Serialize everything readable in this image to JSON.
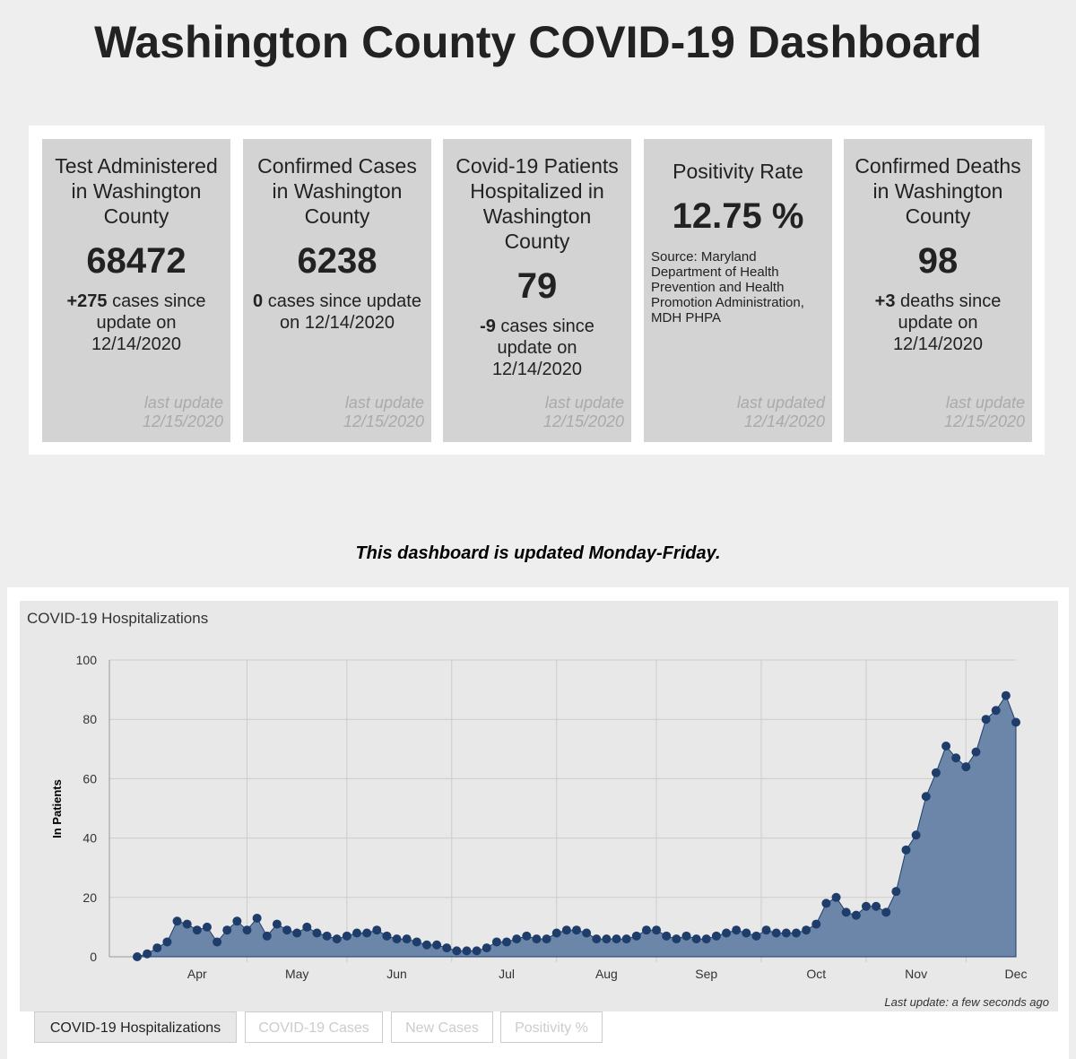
{
  "header": {
    "title": "Washington County COVID-19 Dashboard"
  },
  "cards": [
    {
      "title": "Test Administered in Washington County",
      "value": "68472",
      "change": "+275",
      "change_text": "cases since update on 12/14/2020",
      "updated_label": "last update",
      "updated": "12/15/2020"
    },
    {
      "title": "Confirmed Cases in Washington County",
      "value": "6238",
      "change": "0",
      "change_text": "cases since update on 12/14/2020",
      "updated_label": "last update",
      "updated": "12/15/2020"
    },
    {
      "title": "Covid-19 Patients Hospitalized in Washington County",
      "value": "79",
      "change": "-9",
      "change_text": "cases since update on 12/14/2020",
      "updated_label": "last update",
      "updated": "12/15/2020"
    },
    {
      "title": "Positivity Rate",
      "value": "12.75 %",
      "source": "Source: Maryland Department of Health Prevention and Health Promotion Administration, MDH PHPA",
      "updated_label": "last updated",
      "updated": "12/14/2020"
    },
    {
      "title": "Confirmed Deaths in Washington County",
      "value": "98",
      "change": "+3",
      "change_text": "deaths since update on 12/14/2020",
      "updated_label": "last update",
      "updated": "12/15/2020"
    }
  ],
  "note": "This dashboard is updated Monday-Friday.",
  "chart_data": {
    "type": "area",
    "title": "COVID-19 Hospitalizations",
    "y_label": "In Patients",
    "footnote": "Last update: a few seconds ago",
    "categories": [
      null,
      null,
      null,
      null,
      null,
      null,
      "Apr",
      null,
      null,
      null,
      null,
      null,
      null,
      null,
      null,
      null,
      "May",
      null,
      null,
      null,
      null,
      null,
      null,
      null,
      null,
      null,
      "Jun",
      null,
      null,
      null,
      null,
      null,
      null,
      null,
      null,
      null,
      null,
      "Jul",
      null,
      null,
      null,
      null,
      null,
      null,
      null,
      null,
      null,
      "Aug",
      null,
      null,
      null,
      null,
      null,
      null,
      null,
      null,
      null,
      "Sep",
      null,
      null,
      null,
      null,
      null,
      null,
      null,
      null,
      null,
      null,
      "Oct",
      null,
      null,
      null,
      null,
      null,
      null,
      null,
      null,
      null,
      "Nov",
      null,
      null,
      null,
      null,
      null,
      null,
      null,
      null,
      null,
      "Dec"
    ],
    "values": [
      0,
      1,
      3,
      5,
      12,
      11,
      9,
      10,
      5,
      9,
      12,
      9,
      13,
      7,
      11,
      9,
      8,
      10,
      8,
      7,
      6,
      7,
      8,
      8,
      9,
      7,
      6,
      6,
      5,
      4,
      4,
      3,
      2,
      2,
      2,
      3,
      5,
      5,
      6,
      7,
      6,
      6,
      8,
      9,
      9,
      8,
      6,
      6,
      6,
      6,
      7,
      9,
      9,
      7,
      6,
      7,
      6,
      6,
      7,
      8,
      9,
      8,
      7,
      9,
      8,
      8,
      8,
      9,
      11,
      18,
      20,
      15,
      14,
      17,
      17,
      15,
      22,
      36,
      41,
      54,
      62,
      71,
      67,
      64,
      69,
      80,
      83,
      88,
      79
    ],
    "color": "#1f3d6b",
    "area_color": "#6b86a8",
    "ylim": [
      0,
      100
    ],
    "yticks": [
      0,
      20,
      40,
      60,
      80,
      100
    ],
    "grid": true
  },
  "tabs": [
    "COVID-19 Hospitalizations",
    "COVID-19 Cases",
    "New Cases",
    "Positivity %"
  ]
}
